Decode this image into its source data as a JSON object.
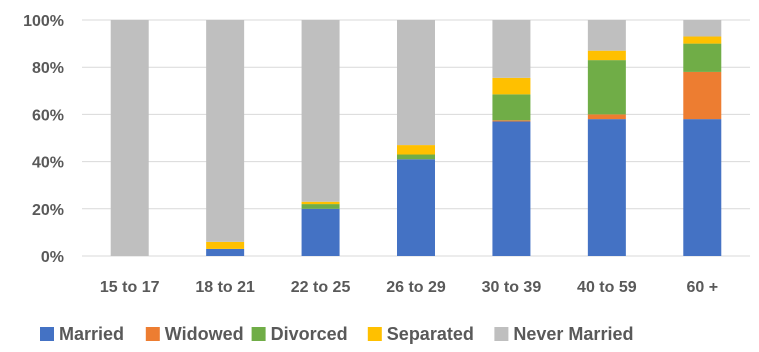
{
  "chart_data": {
    "type": "bar",
    "stacked": true,
    "percent_stacked": true,
    "categories": [
      "15 to 17",
      "18 to 21",
      "22 to 25",
      "26 to 29",
      "30 to 39",
      "40 to 59",
      "60 +"
    ],
    "series": [
      {
        "name": "Married",
        "color": "#4472C4",
        "values": [
          0,
          3,
          20,
          41,
          57,
          58,
          58
        ]
      },
      {
        "name": "Widowed",
        "color": "#ED7D31",
        "values": [
          0,
          0,
          0,
          0,
          0.5,
          2,
          20
        ]
      },
      {
        "name": "Divorced",
        "color": "#70AD47",
        "values": [
          0,
          0,
          2,
          2,
          11,
          23,
          12
        ]
      },
      {
        "name": "Separated",
        "color": "#FFC000",
        "values": [
          0,
          3,
          1,
          4,
          7,
          4,
          3
        ]
      },
      {
        "name": "Never Married",
        "color": "#BFBFBF",
        "values": [
          100,
          94,
          77,
          53,
          24.5,
          13,
          7
        ]
      }
    ],
    "ylim": [
      0,
      100
    ],
    "yticks": [
      "0%",
      "20%",
      "40%",
      "60%",
      "80%",
      "100%"
    ],
    "grid": true,
    "legend_position": "bottom"
  }
}
